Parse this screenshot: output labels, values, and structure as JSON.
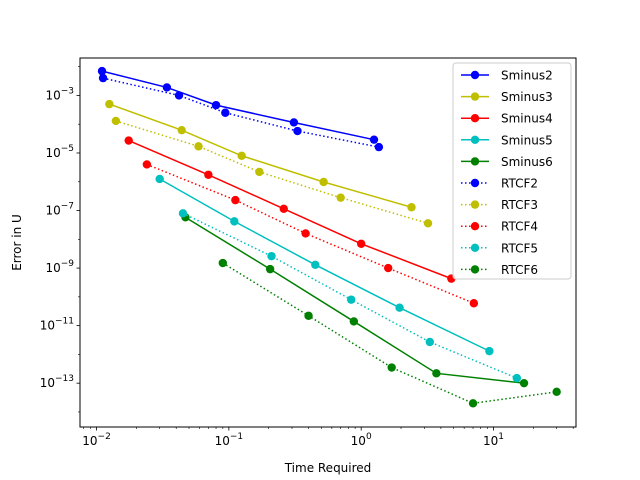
{
  "chart_data": {
    "type": "line",
    "xlabel": "Time Required",
    "ylabel": "Error in U",
    "xscale": "log",
    "yscale": "log",
    "xlim": [
      0.0075,
      42
    ],
    "ylim": [
      3e-15,
      0.02
    ],
    "grid": false,
    "legend_position": "top-right",
    "xticks": [
      {
        "value": 0.01,
        "base": "10",
        "exp": "−2"
      },
      {
        "value": 0.1,
        "base": "10",
        "exp": "−1"
      },
      {
        "value": 1,
        "base": "10",
        "exp": "0"
      },
      {
        "value": 10,
        "base": "10",
        "exp": "1"
      }
    ],
    "yticks": [
      {
        "value": 0.001,
        "base": "10",
        "exp": "−3"
      },
      {
        "value": 1e-05,
        "base": "10",
        "exp": "−5"
      },
      {
        "value": 1e-07,
        "base": "10",
        "exp": "−7"
      },
      {
        "value": 1e-09,
        "base": "10",
        "exp": "−9"
      },
      {
        "value": 1e-11,
        "base": "10",
        "exp": "−11"
      },
      {
        "value": 1e-13,
        "base": "10",
        "exp": "−13"
      }
    ],
    "series": [
      {
        "name": "Sminus2",
        "color": "#0000ff",
        "style": "solid",
        "x": [
          0.011,
          0.034,
          0.08,
          0.31,
          1.25
        ],
        "y": [
          0.007,
          0.0019,
          0.00046,
          0.000115,
          2.9e-05
        ]
      },
      {
        "name": "Sminus3",
        "color": "#bfbf00",
        "style": "solid",
        "x": [
          0.0125,
          0.044,
          0.125,
          0.52,
          2.4
        ],
        "y": [
          0.0005,
          6.2e-05,
          8e-06,
          9.8e-07,
          1.3e-07
        ]
      },
      {
        "name": "Sminus4",
        "color": "#ff0000",
        "style": "solid",
        "x": [
          0.0175,
          0.07,
          0.26,
          1.0,
          4.8
        ],
        "y": [
          2.7e-05,
          1.75e-06,
          1.15e-07,
          7e-09,
          4.3e-10
        ]
      },
      {
        "name": "Sminus5",
        "color": "#00bfbf",
        "style": "solid",
        "x": [
          0.03,
          0.11,
          0.45,
          1.95,
          9.3
        ],
        "y": [
          1.25e-06,
          4.2e-08,
          1.3e-09,
          4.2e-11,
          1.3e-12
        ]
      },
      {
        "name": "Sminus6",
        "color": "#008000",
        "style": "solid",
        "x": [
          0.047,
          0.205,
          0.88,
          3.7,
          17.0
        ],
        "y": [
          5.8e-08,
          9.2e-10,
          1.4e-11,
          2.2e-13,
          1e-13
        ]
      },
      {
        "name": "RTCF2",
        "color": "#0000ff",
        "style": "dotted",
        "x": [
          0.0112,
          0.042,
          0.094,
          0.33,
          1.36
        ],
        "y": [
          0.004,
          0.001,
          0.00025,
          5.8e-05,
          1.6e-05
        ]
      },
      {
        "name": "RTCF3",
        "color": "#bfbf00",
        "style": "dotted",
        "x": [
          0.014,
          0.059,
          0.17,
          0.7,
          3.2
        ],
        "y": [
          0.00013,
          1.7e-05,
          2.2e-06,
          2.8e-07,
          3.6e-08
        ]
      },
      {
        "name": "RTCF4",
        "color": "#ff0000",
        "style": "dotted",
        "x": [
          0.024,
          0.112,
          0.38,
          1.6,
          7.1
        ],
        "y": [
          4e-06,
          2.3e-07,
          1.6e-08,
          1e-09,
          6e-11
        ]
      },
      {
        "name": "RTCF5",
        "color": "#00bfbf",
        "style": "dotted",
        "x": [
          0.045,
          0.21,
          0.84,
          3.3,
          15.0
        ],
        "y": [
          8e-08,
          2.6e-09,
          8e-11,
          2.7e-12,
          1.5e-13
        ]
      },
      {
        "name": "RTCF6",
        "color": "#008000",
        "style": "dotted",
        "x": [
          0.09,
          0.4,
          1.7,
          7.0,
          30.0
        ],
        "y": [
          1.5e-09,
          2.2e-11,
          3.5e-13,
          2e-14,
          5e-14
        ]
      }
    ]
  }
}
